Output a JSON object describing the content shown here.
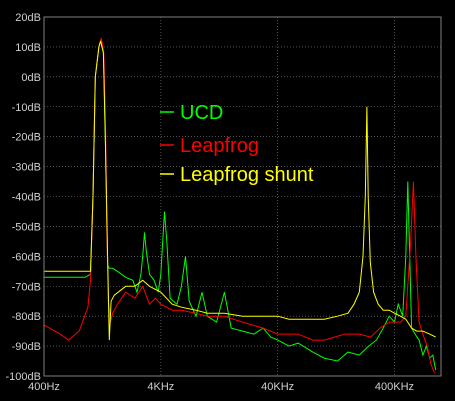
{
  "chart_data": {
    "type": "line",
    "xscale": "log",
    "xlim": [
      400,
      1000000
    ],
    "ylim": [
      -100,
      20
    ],
    "grid": true,
    "legend_position": "center",
    "xtick_labels": [
      {
        "v": 400,
        "text": "400Hz"
      },
      {
        "v": 4000,
        "text": "4KHz"
      },
      {
        "v": 40000,
        "text": "40KHz"
      },
      {
        "v": 400000,
        "text": "400KHz"
      }
    ],
    "ytick_labels": [
      {
        "v": 20,
        "text": "20dB"
      },
      {
        "v": 10,
        "text": "10dB"
      },
      {
        "v": 0,
        "text": "0dB"
      },
      {
        "v": -10,
        "text": "-10dB"
      },
      {
        "v": -20,
        "text": "-20dB"
      },
      {
        "v": -30,
        "text": "-30dB"
      },
      {
        "v": -40,
        "text": "-40dB"
      },
      {
        "v": -50,
        "text": "-50dB"
      },
      {
        "v": -60,
        "text": "-60dB"
      },
      {
        "v": -70,
        "text": "-70dB"
      },
      {
        "v": -80,
        "text": "-80dB"
      },
      {
        "v": -90,
        "text": "-90dB"
      },
      {
        "v": -100,
        "text": "-100dB"
      }
    ],
    "colors": {
      "background": "#000000",
      "grid": "#808080",
      "tick_text": "#cfcfcf"
    },
    "series": [
      {
        "name": "UCD",
        "color": "#00ff00",
        "points": [
          [
            400,
            -67
          ],
          [
            900,
            -67
          ],
          [
            1000,
            -66
          ],
          [
            1050,
            -40
          ],
          [
            1100,
            0
          ],
          [
            1180,
            10
          ],
          [
            1220,
            12
          ],
          [
            1290,
            8
          ],
          [
            1340,
            -20
          ],
          [
            1400,
            -63
          ],
          [
            1450,
            -64
          ],
          [
            1550,
            -64
          ],
          [
            1700,
            -65
          ],
          [
            2000,
            -67
          ],
          [
            2300,
            -68
          ],
          [
            2500,
            -72
          ],
          [
            2700,
            -66
          ],
          [
            2800,
            -60
          ],
          [
            2900,
            -52
          ],
          [
            3000,
            -58
          ],
          [
            3200,
            -66
          ],
          [
            3500,
            -68
          ],
          [
            3800,
            -72
          ],
          [
            4000,
            -66
          ],
          [
            4300,
            -45
          ],
          [
            4500,
            -55
          ],
          [
            4800,
            -74
          ],
          [
            5500,
            -76
          ],
          [
            6000,
            -70
          ],
          [
            6500,
            -60
          ],
          [
            7000,
            -75
          ],
          [
            8000,
            -80
          ],
          [
            9000,
            -72
          ],
          [
            10000,
            -80
          ],
          [
            12000,
            -82
          ],
          [
            14000,
            -72
          ],
          [
            16000,
            -84
          ],
          [
            20000,
            -85
          ],
          [
            25000,
            -86
          ],
          [
            30000,
            -84
          ],
          [
            35000,
            -87
          ],
          [
            40000,
            -88
          ],
          [
            50000,
            -90
          ],
          [
            60000,
            -89
          ],
          [
            80000,
            -92
          ],
          [
            100000,
            -94
          ],
          [
            130000,
            -95
          ],
          [
            160000,
            -92
          ],
          [
            200000,
            -93
          ],
          [
            240000,
            -90
          ],
          [
            280000,
            -88
          ],
          [
            320000,
            -84
          ],
          [
            360000,
            -80
          ],
          [
            400000,
            -82
          ],
          [
            430000,
            -76
          ],
          [
            470000,
            -80
          ],
          [
            500000,
            -60
          ],
          [
            520000,
            -35
          ],
          [
            540000,
            -60
          ],
          [
            560000,
            -84
          ],
          [
            600000,
            -86
          ],
          [
            650000,
            -88
          ],
          [
            700000,
            -93
          ],
          [
            750000,
            -90
          ],
          [
            800000,
            -94
          ],
          [
            850000,
            -93
          ],
          [
            900000,
            -98
          ]
        ]
      },
      {
        "name": "Leapfrog",
        "color": "#ff0000",
        "points": [
          [
            400,
            -83
          ],
          [
            550,
            -86
          ],
          [
            650,
            -88
          ],
          [
            800,
            -85
          ],
          [
            950,
            -77
          ],
          [
            1000,
            -68
          ],
          [
            1050,
            -40
          ],
          [
            1100,
            0
          ],
          [
            1180,
            10
          ],
          [
            1240,
            13
          ],
          [
            1300,
            8
          ],
          [
            1350,
            -20
          ],
          [
            1380,
            -50
          ],
          [
            1420,
            -75
          ],
          [
            1480,
            -82
          ],
          [
            1550,
            -79
          ],
          [
            1700,
            -76
          ],
          [
            2000,
            -72
          ],
          [
            2400,
            -74
          ],
          [
            2800,
            -70
          ],
          [
            3200,
            -76
          ],
          [
            3600,
            -74
          ],
          [
            4000,
            -76
          ],
          [
            5000,
            -78
          ],
          [
            6000,
            -78
          ],
          [
            8000,
            -79
          ],
          [
            10000,
            -80
          ],
          [
            14000,
            -80
          ],
          [
            20000,
            -82
          ],
          [
            30000,
            -84
          ],
          [
            40000,
            -86
          ],
          [
            60000,
            -86
          ],
          [
            80000,
            -88
          ],
          [
            100000,
            -88
          ],
          [
            150000,
            -86
          ],
          [
            200000,
            -86
          ],
          [
            250000,
            -87
          ],
          [
            300000,
            -84
          ],
          [
            360000,
            -82
          ],
          [
            400000,
            -82
          ],
          [
            450000,
            -82
          ],
          [
            500000,
            -80
          ],
          [
            550000,
            -55
          ],
          [
            580000,
            -35
          ],
          [
            610000,
            -60
          ],
          [
            650000,
            -82
          ],
          [
            700000,
            -86
          ],
          [
            760000,
            -90
          ],
          [
            820000,
            -96
          ],
          [
            880000,
            -99
          ]
        ]
      },
      {
        "name": "Leapfrog shunt",
        "color": "#ffff00",
        "points": [
          [
            400,
            -65
          ],
          [
            900,
            -65
          ],
          [
            1000,
            -65
          ],
          [
            1050,
            -40
          ],
          [
            1100,
            0
          ],
          [
            1180,
            10
          ],
          [
            1220,
            12
          ],
          [
            1290,
            8
          ],
          [
            1340,
            -20
          ],
          [
            1400,
            -60
          ],
          [
            1450,
            -88
          ],
          [
            1500,
            -75
          ],
          [
            1600,
            -73
          ],
          [
            2000,
            -70
          ],
          [
            2400,
            -70
          ],
          [
            2800,
            -68
          ],
          [
            3200,
            -70
          ],
          [
            4000,
            -72
          ],
          [
            5000,
            -76
          ],
          [
            6000,
            -77
          ],
          [
            8000,
            -78
          ],
          [
            10000,
            -79
          ],
          [
            14000,
            -79
          ],
          [
            20000,
            -80
          ],
          [
            30000,
            -80
          ],
          [
            40000,
            -80
          ],
          [
            50000,
            -81
          ],
          [
            70000,
            -81
          ],
          [
            100000,
            -81
          ],
          [
            130000,
            -80
          ],
          [
            160000,
            -79
          ],
          [
            180000,
            -76
          ],
          [
            200000,
            -72
          ],
          [
            215000,
            -60
          ],
          [
            225000,
            -40
          ],
          [
            232000,
            -10
          ],
          [
            238000,
            -40
          ],
          [
            248000,
            -62
          ],
          [
            265000,
            -72
          ],
          [
            290000,
            -76
          ],
          [
            320000,
            -78
          ],
          [
            360000,
            -78
          ],
          [
            400000,
            -79
          ],
          [
            450000,
            -80
          ],
          [
            500000,
            -81
          ],
          [
            560000,
            -84
          ],
          [
            620000,
            -85
          ],
          [
            700000,
            -85
          ],
          [
            800000,
            -86
          ],
          [
            900000,
            -87
          ]
        ]
      }
    ]
  }
}
